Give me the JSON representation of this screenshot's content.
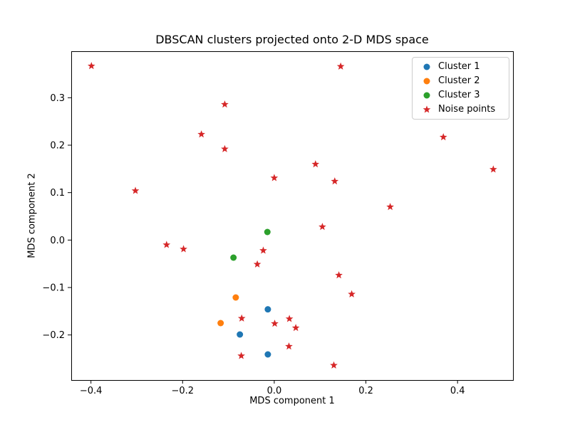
{
  "window": {
    "background": "#ffffff"
  },
  "chart_data": {
    "type": "scatter",
    "title": "DBSCAN clusters projected onto 2-D MDS space",
    "xlabel": "MDS component 1",
    "ylabel": "MDS component 2",
    "xlim": [
      -0.443,
      0.521
    ],
    "ylim": [
      -0.295,
      0.398
    ],
    "xticks": [
      -0.4,
      -0.2,
      0.0,
      0.2,
      0.4
    ],
    "xtick_labels": [
      "−0.4",
      "−0.2",
      "0.0",
      "0.2",
      "0.4"
    ],
    "yticks": [
      0.3,
      0.2,
      0.1,
      0.0,
      -0.1,
      -0.2
    ],
    "ytick_labels": [
      "0.3",
      "0.2",
      "0.1",
      "0.0",
      "−0.1",
      "−0.2"
    ],
    "grid": false,
    "legend_position": "upper right",
    "axis_color": "#000000",
    "series": [
      {
        "name": "Cluster 1",
        "marker": "circle",
        "color": "#1f77b4",
        "points": [
          [
            -0.014,
            -0.146
          ],
          [
            -0.075,
            -0.199
          ],
          [
            -0.014,
            -0.241
          ]
        ]
      },
      {
        "name": "Cluster 2",
        "marker": "circle",
        "color": "#ff7f0e",
        "points": [
          [
            -0.084,
            -0.121
          ],
          [
            -0.117,
            -0.175
          ]
        ]
      },
      {
        "name": "Cluster 3",
        "marker": "circle",
        "color": "#2ca02c",
        "points": [
          [
            -0.015,
            0.017
          ],
          [
            -0.089,
            -0.037
          ]
        ]
      },
      {
        "name": "Noise points",
        "marker": "star",
        "color": "#d62728",
        "points": [
          [
            -0.399,
            0.367
          ],
          [
            0.145,
            0.366
          ],
          [
            -0.108,
            0.286
          ],
          [
            -0.159,
            0.223
          ],
          [
            -0.108,
            0.192
          ],
          [
            0.369,
            0.217
          ],
          [
            0.478,
            0.149
          ],
          [
            -0.303,
            0.104
          ],
          [
            0.09,
            0.16
          ],
          [
            0.132,
            0.124
          ],
          [
            0.0,
            0.131
          ],
          [
            0.253,
            0.07
          ],
          [
            0.105,
            0.028
          ],
          [
            -0.235,
            -0.01
          ],
          [
            -0.198,
            -0.019
          ],
          [
            -0.024,
            -0.022
          ],
          [
            -0.037,
            -0.051
          ],
          [
            0.141,
            -0.074
          ],
          [
            0.169,
            -0.114
          ],
          [
            -0.071,
            -0.165
          ],
          [
            0.001,
            -0.176
          ],
          [
            0.033,
            -0.166
          ],
          [
            0.047,
            -0.185
          ],
          [
            0.032,
            -0.224
          ],
          [
            -0.072,
            -0.244
          ],
          [
            0.13,
            -0.264
          ]
        ]
      }
    ]
  }
}
